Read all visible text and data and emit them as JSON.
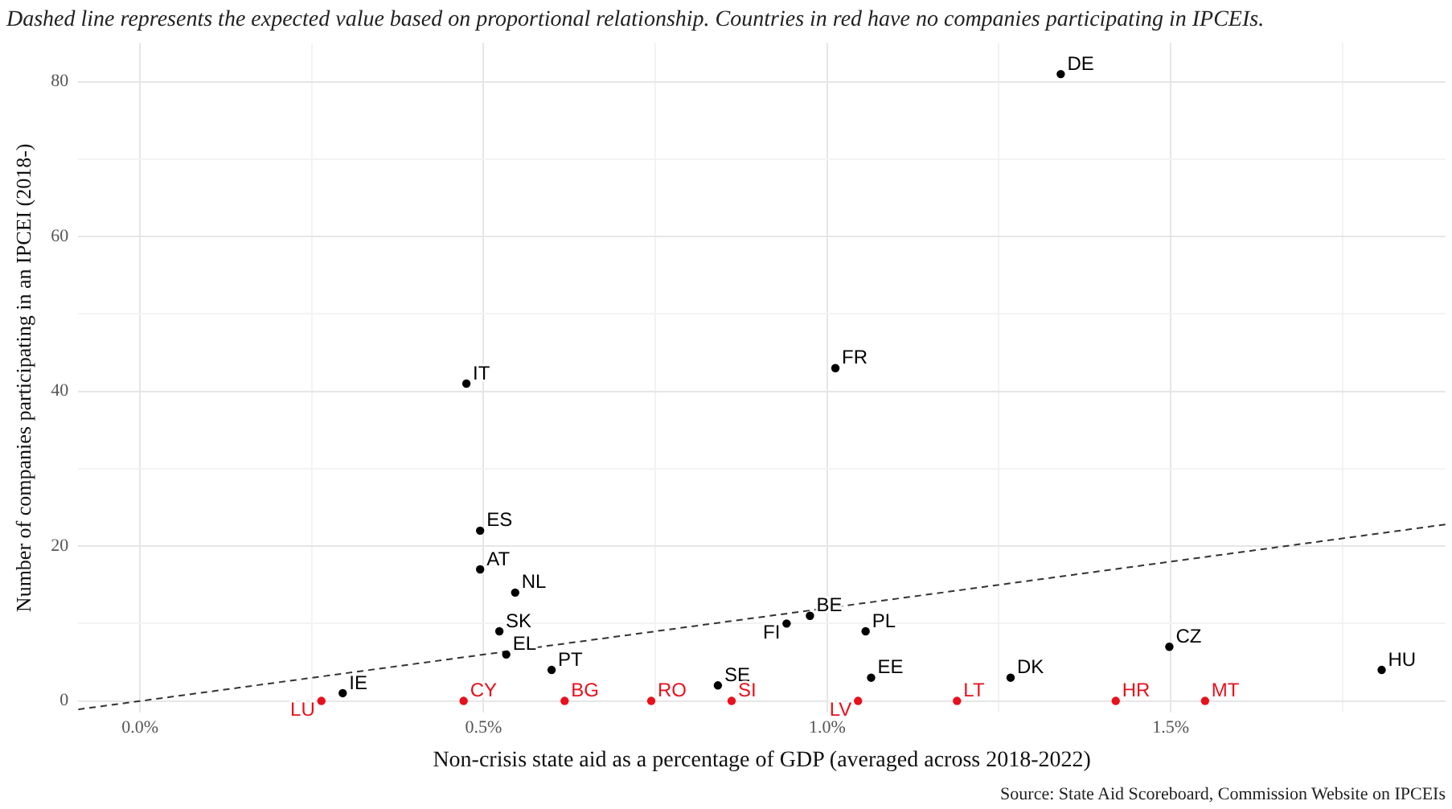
{
  "chart_data": {
    "type": "scatter",
    "title": "Dashed line represents the expected value based on proportional relationship. Countries in red have no companies participating in IPCEIs.",
    "xlabel": "Non-crisis state aid as a percentage of GDP (averaged across 2018-2022)",
    "ylabel": "Number of companies participating in an IPCEI (2018-)",
    "xlim": [
      -0.09,
      1.9
    ],
    "ylim": [
      -1.5,
      85
    ],
    "xticks": [
      {
        "value": 0,
        "label": "0.0%"
      },
      {
        "value": 0.25,
        "label": null
      },
      {
        "value": 0.5,
        "label": "0.5%"
      },
      {
        "value": 0.75,
        "label": null
      },
      {
        "value": 1,
        "label": "1.0%"
      },
      {
        "value": 1.25,
        "label": null
      },
      {
        "value": 1.5,
        "label": "1.5%"
      },
      {
        "value": 1.75,
        "label": null
      }
    ],
    "yticks": [
      0,
      {
        "value": 10,
        "label": null
      },
      20,
      {
        "value": 30,
        "label": null
      },
      40,
      {
        "value": 50,
        "label": null
      },
      60,
      {
        "value": 70,
        "label": null
      },
      80
    ],
    "grid": true,
    "legend": false,
    "marker": "circle",
    "series": [
      {
        "type": "scatter",
        "color": "#000000",
        "x": [
          1.34,
          1.012,
          0.475,
          0.495,
          0.495,
          0.546,
          0.523,
          0.533,
          0.599,
          0.295,
          0.841,
          0.941,
          0.975,
          1.056,
          1.064,
          1.267,
          1.498,
          1.807
        ],
        "values": [
          81,
          43,
          41,
          22,
          17,
          14,
          9,
          6,
          4,
          1,
          2,
          10,
          11,
          9,
          3,
          3,
          7,
          4
        ]
      },
      {
        "type": "scatter",
        "color": "#e8101c",
        "x": [
          0.264,
          0.471,
          0.618,
          0.744,
          0.861,
          1.045,
          1.189,
          1.42,
          1.55
        ],
        "values": [
          0,
          0,
          0,
          0,
          0,
          0,
          0,
          0,
          0
        ]
      },
      {
        "type": "line",
        "color": "#333333",
        "line_style": "dashed",
        "marker": "none",
        "x": [
          -0.09,
          1.9
        ],
        "values": [
          -1.1,
          22.8
        ]
      }
    ],
    "annotations": [
      {
        "text": "DE",
        "x": 1.34,
        "y": 81
      },
      {
        "text": "FR",
        "x": 1.012,
        "y": 43
      },
      {
        "text": "IT",
        "x": 0.475,
        "y": 41
      },
      {
        "text": "ES",
        "x": 0.495,
        "y": 22
      },
      {
        "text": "AT",
        "x": 0.495,
        "y": 17
      },
      {
        "text": "NL",
        "x": 0.546,
        "y": 14
      },
      {
        "text": "SK",
        "x": 0.523,
        "y": 9
      },
      {
        "text": "EL",
        "x": 0.533,
        "y": 6
      },
      {
        "text": "PT",
        "x": 0.599,
        "y": 4
      },
      {
        "text": "IE",
        "x": 0.295,
        "y": 1
      },
      {
        "text": "SE",
        "x": 0.841,
        "y": 2
      },
      {
        "text": "FI",
        "x": 0.941,
        "y": 10
      },
      {
        "text": "BE",
        "x": 0.975,
        "y": 11
      },
      {
        "text": "PL",
        "x": 1.056,
        "y": 9
      },
      {
        "text": "EE",
        "x": 1.064,
        "y": 3
      },
      {
        "text": "DK",
        "x": 1.267,
        "y": 3
      },
      {
        "text": "CZ",
        "x": 1.498,
        "y": 7
      },
      {
        "text": "HU",
        "x": 1.807,
        "y": 4
      },
      {
        "text": "LU",
        "x": 0.264,
        "y": 0
      },
      {
        "text": "CY",
        "x": 0.471,
        "y": 0
      },
      {
        "text": "BG",
        "x": 0.618,
        "y": 0
      },
      {
        "text": "RO",
        "x": 0.744,
        "y": 0
      },
      {
        "text": "SI",
        "x": 0.861,
        "y": 0
      },
      {
        "text": "LV",
        "x": 1.045,
        "y": 0
      },
      {
        "text": "LT",
        "x": 1.189,
        "y": 0
      },
      {
        "text": "HR",
        "x": 1.42,
        "y": 0
      },
      {
        "text": "MT",
        "x": 1.55,
        "y": 0
      },
      "Source: State Aid Scoreboard, Commission Website on IPCEIs"
    ]
  }
}
